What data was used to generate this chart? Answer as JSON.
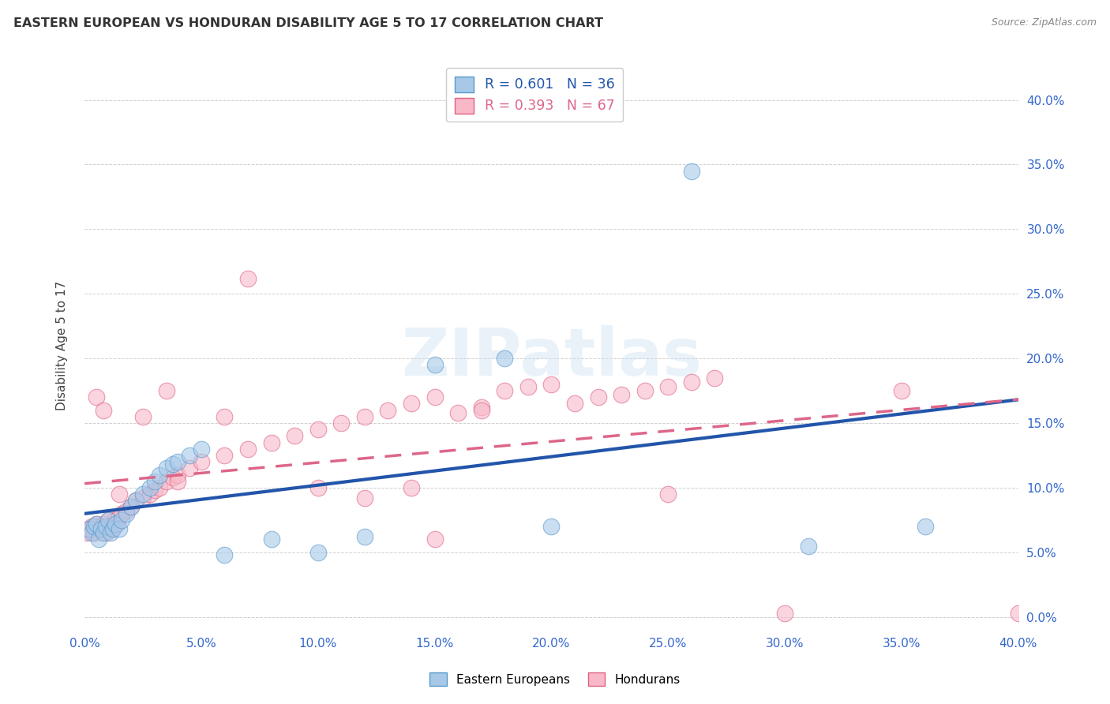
{
  "title": "EASTERN EUROPEAN VS HONDURAN DISABILITY AGE 5 TO 17 CORRELATION CHART",
  "source": "Source: ZipAtlas.com",
  "ylabel": "Disability Age 5 to 17",
  "xlim": [
    0.0,
    0.4
  ],
  "ylim": [
    -0.01,
    0.43
  ],
  "background_color": "#ffffff",
  "grid_color": "#d0d0d0",
  "blue_scatter_color": "#a8c8e8",
  "blue_scatter_edge": "#5599cc",
  "pink_scatter_color": "#f8b8c8",
  "pink_scatter_edge": "#e06080",
  "blue_line_color": "#2255aa",
  "pink_line_color": "#dd6688",
  "blue_R": 0.601,
  "blue_N": 36,
  "pink_R": 0.393,
  "pink_N": 67,
  "legend_label_blue": "Eastern Europeans",
  "legend_label_pink": "Hondurans",
  "watermark": "ZIPatlas",
  "tick_color": "#3366cc",
  "title_color": "#333333",
  "ee_x": [
    0.002,
    0.003,
    0.004,
    0.005,
    0.006,
    0.007,
    0.008,
    0.009,
    0.01,
    0.011,
    0.012,
    0.013,
    0.015,
    0.016,
    0.018,
    0.02,
    0.022,
    0.025,
    0.028,
    0.03,
    0.032,
    0.035,
    0.038,
    0.04,
    0.045,
    0.05,
    0.06,
    0.08,
    0.1,
    0.12,
    0.15,
    0.18,
    0.2,
    0.26,
    0.31,
    0.36
  ],
  "ee_y": [
    0.068,
    0.065,
    0.07,
    0.072,
    0.06,
    0.068,
    0.065,
    0.07,
    0.075,
    0.065,
    0.068,
    0.072,
    0.068,
    0.075,
    0.08,
    0.085,
    0.09,
    0.095,
    0.1,
    0.105,
    0.11,
    0.115,
    0.118,
    0.12,
    0.125,
    0.13,
    0.048,
    0.06,
    0.05,
    0.062,
    0.195,
    0.2,
    0.07,
    0.345,
    0.055,
    0.07
  ],
  "hon_x": [
    0.001,
    0.002,
    0.003,
    0.004,
    0.005,
    0.006,
    0.007,
    0.008,
    0.009,
    0.01,
    0.011,
    0.012,
    0.013,
    0.014,
    0.015,
    0.016,
    0.018,
    0.02,
    0.022,
    0.025,
    0.028,
    0.03,
    0.032,
    0.035,
    0.038,
    0.04,
    0.045,
    0.05,
    0.06,
    0.07,
    0.08,
    0.09,
    0.1,
    0.11,
    0.12,
    0.13,
    0.14,
    0.15,
    0.16,
    0.17,
    0.18,
    0.19,
    0.2,
    0.21,
    0.22,
    0.23,
    0.24,
    0.25,
    0.26,
    0.27,
    0.005,
    0.008,
    0.015,
    0.025,
    0.04,
    0.07,
    0.1,
    0.14,
    0.17,
    0.12,
    0.035,
    0.06,
    0.15,
    0.25,
    0.3,
    0.35,
    0.4
  ],
  "hon_y": [
    0.065,
    0.068,
    0.07,
    0.065,
    0.072,
    0.068,
    0.07,
    0.072,
    0.065,
    0.075,
    0.07,
    0.068,
    0.075,
    0.072,
    0.078,
    0.08,
    0.082,
    0.085,
    0.09,
    0.092,
    0.095,
    0.098,
    0.1,
    0.105,
    0.108,
    0.11,
    0.115,
    0.12,
    0.125,
    0.13,
    0.135,
    0.14,
    0.145,
    0.15,
    0.155,
    0.16,
    0.165,
    0.17,
    0.158,
    0.162,
    0.175,
    0.178,
    0.18,
    0.165,
    0.17,
    0.172,
    0.175,
    0.178,
    0.182,
    0.185,
    0.17,
    0.16,
    0.095,
    0.155,
    0.105,
    0.262,
    0.1,
    0.1,
    0.16,
    0.092,
    0.175,
    0.155,
    0.06,
    0.095,
    0.003,
    0.175,
    0.003
  ]
}
